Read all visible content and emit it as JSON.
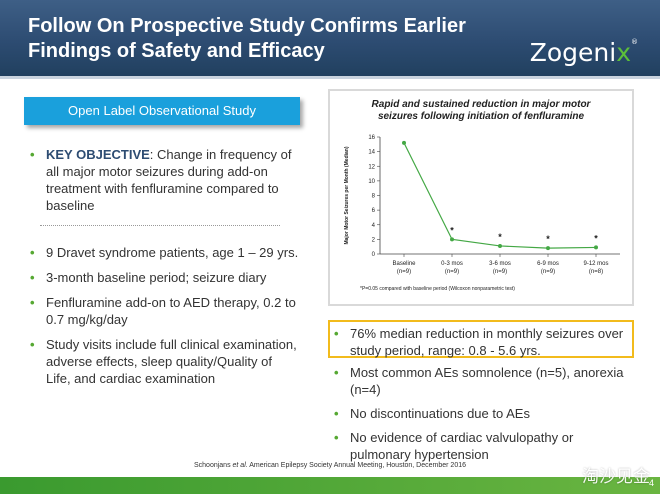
{
  "header": {
    "title_line1": "Follow On Prospective Study Confirms Earlier",
    "title_line2": "Findings of Safety and Efficacy",
    "logo_main": "Zogeni",
    "logo_x": "x",
    "logo_tm": "®",
    "bar_color": "#2d4c72",
    "accent_green": "#5cbf3a"
  },
  "left": {
    "box_label": "Open Label Observational Study",
    "key_objective_label": "KEY OBJECTIVE",
    "key_objective_text": ": Change in frequency of all major motor seizures during add-on treatment with fenfluramine compared to baseline",
    "bullets": [
      "9 Dravet syndrome patients, age 1 – 29 yrs.",
      "3-month baseline period; seizure diary",
      "Fenfluramine add-on to AED therapy, 0.2 to 0.7 mg/kg/day",
      "Study visits include full clinical examination, adverse effects, sleep quality/Quality of Life, and cardiac examination"
    ]
  },
  "chart": {
    "title_line1": "Rapid and sustained reduction in major motor",
    "title_line2": "seizures following initiation of fenfluramine",
    "footnote": "*P=0.05 compared with baseline period (Wilcoxon nonparametric test)"
  },
  "chart_data": {
    "type": "line",
    "title": "Rapid and sustained reduction in major motor seizures following initiation of fenfluramine",
    "ylabel": "Major Motor Seizures per Month (Median)",
    "xlabel": "",
    "ylim": [
      0,
      16
    ],
    "yticks": [
      0,
      2,
      4,
      6,
      8,
      10,
      12,
      14,
      16
    ],
    "categories": [
      "Baseline",
      "0-3 mos",
      "3-6 mos",
      "6-9 mos",
      "9-12 mos"
    ],
    "sublabels": [
      "(n=9)",
      "(n=9)",
      "(n=9)",
      "(n=9)",
      "(n=8)"
    ],
    "values": [
      15.2,
      2.0,
      1.1,
      0.8,
      0.9
    ],
    "significance": [
      "",
      "*",
      "*",
      "*",
      "*"
    ],
    "line_color": "#44a845",
    "grid": false
  },
  "right": {
    "highlight_text": "76% median reduction in monthly seizures over study period, range: 0.8 - 5.6 yrs.",
    "bullets": [
      "Most common AEs somnolence (n=5), anorexia (n=4)",
      "No discontinuations due to AEs",
      "No evidence of cardiac valvulopathy or pulmonary hypertension"
    ]
  },
  "footer": {
    "citation_prefix": "Schoonjans ",
    "citation_etal": "et al.",
    "citation_suffix": " American Epilepsy Society Annual Meeting, Houston, December 2016",
    "watermark": "淘沙见金",
    "page_number": "4",
    "bar_color": "#4ea53a"
  }
}
